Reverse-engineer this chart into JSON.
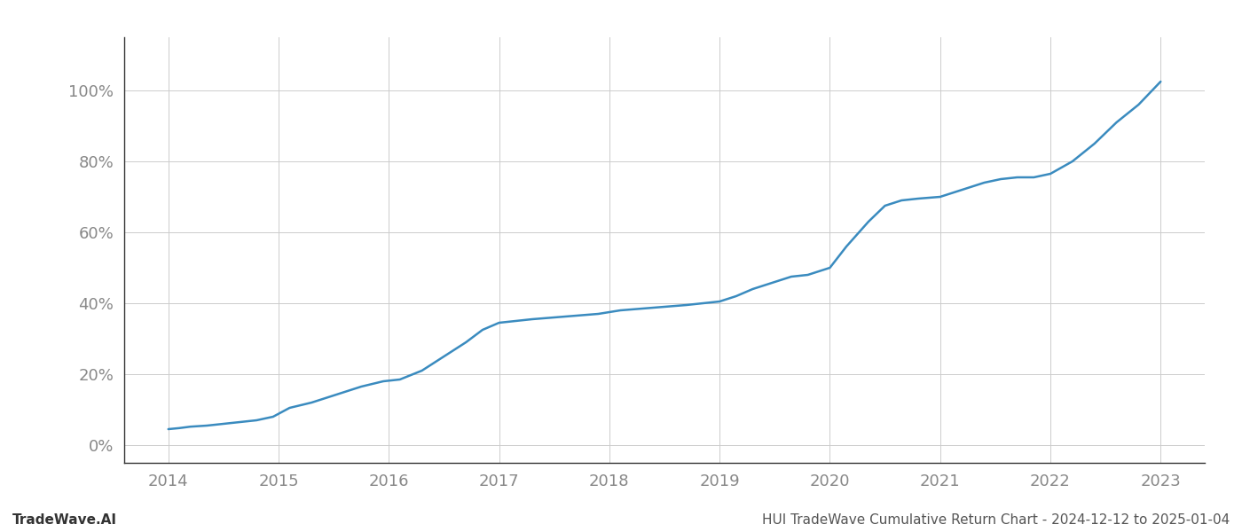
{
  "title": "HUI TradeWave Cumulative Return Chart - 2024-12-12 to 2025-01-04",
  "watermark": "TradeWave.AI",
  "line_color": "#3a8bbf",
  "background_color": "#ffffff",
  "grid_color": "#cccccc",
  "x_years": [
    2014,
    2015,
    2016,
    2017,
    2018,
    2019,
    2020,
    2021,
    2022,
    2023
  ],
  "ylim": [
    -5,
    115
  ],
  "xlim": [
    2013.6,
    2023.4
  ],
  "yticks": [
    0,
    20,
    40,
    60,
    80,
    100
  ],
  "ytick_labels": [
    "0%",
    "20%",
    "40%",
    "60%",
    "80%",
    "100%"
  ],
  "line_width": 1.8,
  "title_fontsize": 11,
  "watermark_fontsize": 11,
  "tick_fontsize": 13,
  "tick_color": "#888888",
  "spine_color": "#aaaaaa",
  "x_data": [
    2014.0,
    2014.1,
    2014.2,
    2014.35,
    2014.5,
    2014.65,
    2014.8,
    2014.95,
    2015.1,
    2015.3,
    2015.55,
    2015.75,
    2015.95,
    2016.1,
    2016.3,
    2016.5,
    2016.7,
    2016.85,
    2017.0,
    2017.15,
    2017.3,
    2017.5,
    2017.7,
    2017.9,
    2018.1,
    2018.3,
    2018.5,
    2018.7,
    2018.85,
    2019.0,
    2019.15,
    2019.3,
    2019.5,
    2019.65,
    2019.8,
    2020.0,
    2020.15,
    2020.35,
    2020.5,
    2020.65,
    2020.8,
    2021.0,
    2021.2,
    2021.4,
    2021.55,
    2021.7,
    2021.85,
    2022.0,
    2022.2,
    2022.4,
    2022.6,
    2022.8,
    2023.0
  ],
  "y_data": [
    4.5,
    4.8,
    5.2,
    5.5,
    6.0,
    6.5,
    7.0,
    8.0,
    10.5,
    12.0,
    14.5,
    16.5,
    18.0,
    18.5,
    21.0,
    25.0,
    29.0,
    32.5,
    34.5,
    35.0,
    35.5,
    36.0,
    36.5,
    37.0,
    38.0,
    38.5,
    39.0,
    39.5,
    40.0,
    40.5,
    42.0,
    44.0,
    46.0,
    47.5,
    48.0,
    50.0,
    56.0,
    63.0,
    67.5,
    69.0,
    69.5,
    70.0,
    72.0,
    74.0,
    75.0,
    75.5,
    75.5,
    76.5,
    80.0,
    85.0,
    91.0,
    96.0,
    102.5
  ]
}
